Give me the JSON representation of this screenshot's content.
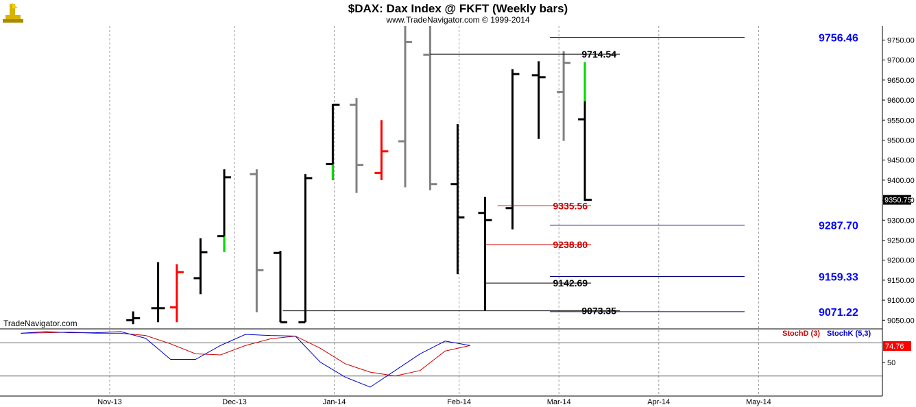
{
  "chart_data": {
    "type": "ohlc",
    "title": "$DAX:  Dax Index @ FKFT  (Weekly bars)",
    "subtitle": "www.TradeNavigator.com © 1999-2014",
    "brand": "TradeNavigator.com",
    "ylim": [
      9030,
      9785
    ],
    "y_ticks": [
      9050,
      9100,
      9150,
      9200,
      9250,
      9300,
      9350,
      9400,
      9450,
      9500,
      9550,
      9600,
      9650,
      9700,
      9750
    ],
    "y_tick_labels": [
      "9050.00",
      "9100.00",
      "9150.00",
      "9200.00",
      "9250.00",
      "9300.00",
      "9350.00",
      "9400.00",
      "9450.00",
      "9500.00",
      "9550.00",
      "9600.00",
      "9650.00",
      "9700.00",
      "9750.00"
    ],
    "last_price": 9350.75,
    "last_price_label": "9350.75",
    "x_labels": [
      "Nov-13",
      "Dec-13",
      "Jan-14",
      "Feb-14",
      "Mar-14",
      "Apr-14",
      "May-14"
    ],
    "x_label_weeks": [
      0,
      5,
      9,
      14,
      18,
      22,
      26
    ],
    "colors": {
      "black": "#000000",
      "gray": "#808080",
      "red": "#ff0000",
      "green": "#00dd00",
      "blue": "#0000ff",
      "navy": "#000080",
      "darkred": "#cc0000"
    },
    "bars": [
      {
        "w": 0.5,
        "high": 9072,
        "low": 9040,
        "open": 9050,
        "close": 9055,
        "color": "black"
      },
      {
        "w": 1.5,
        "high": 9195,
        "low": 9045,
        "open": 9080,
        "close": 9080,
        "color": "black"
      },
      {
        "w": 2.25,
        "high": 9190,
        "low": 9045,
        "open": 9082,
        "close": 9170,
        "color": "red"
      },
      {
        "w": 3.2,
        "high": 9255,
        "low": 9115,
        "open": 9155,
        "close": 9220,
        "color": "black"
      },
      {
        "w": 4.15,
        "high": 9427,
        "low": 9220,
        "open": 9260,
        "close": 9407,
        "color": "black",
        "accent": {
          "from": 9260,
          "to": 9220,
          "color": "green"
        }
      },
      {
        "w": 5.45,
        "high": 9427,
        "low": 9070,
        "open": 9415,
        "close": 9175,
        "color": "gray"
      },
      {
        "w": 6.4,
        "high": 9223,
        "low": 9045,
        "open": 9218,
        "close": 9045,
        "color": "black"
      },
      {
        "w": 7.4,
        "high": 9415,
        "low": 9045,
        "open": 9045,
        "close": 9405,
        "color": "black"
      },
      {
        "w": 8.5,
        "high": 9590,
        "low": 9400,
        "open": 9440,
        "close": 9588,
        "color": "black",
        "accent": {
          "from": 9440,
          "to": 9400,
          "color": "green"
        }
      },
      {
        "w": 9.45,
        "high": 9605,
        "low": 9368,
        "open": 9588,
        "close": 9438,
        "color": "gray"
      },
      {
        "w": 10.45,
        "high": 9550,
        "low": 9400,
        "open": 9418,
        "close": 9472,
        "color": "red"
      },
      {
        "w": 11.4,
        "high": 9795,
        "low": 9382,
        "open": 9497,
        "close": 9745,
        "color": "gray"
      },
      {
        "w": 12.4,
        "high": 9795,
        "low": 9375,
        "open": 9713,
        "close": 9390,
        "color": "gray"
      },
      {
        "w": 13.5,
        "high": 9540,
        "low": 9165,
        "open": 9390,
        "close": 9307,
        "color": "black"
      },
      {
        "w": 14.6,
        "high": 9358,
        "low": 9073,
        "open": 9318,
        "close": 9300,
        "color": "black"
      },
      {
        "w": 15.7,
        "high": 9677,
        "low": 9277,
        "open": 9330,
        "close": 9665,
        "color": "black"
      },
      {
        "w": 16.75,
        "high": 9697,
        "low": 9503,
        "open": 9662,
        "close": 9657,
        "color": "black"
      },
      {
        "w": 17.75,
        "high": 9722,
        "low": 9498,
        "open": 9620,
        "close": 9693,
        "color": "gray"
      },
      {
        "w": 18.6,
        "high": 9695,
        "low": 9348,
        "open": 9552,
        "close": 9350.75,
        "color": "black",
        "accent": {
          "from": 9695,
          "to": 9597,
          "color": "green"
        }
      }
    ],
    "levels": [
      {
        "value": 9756.46,
        "label": "9756.46",
        "color": "navy",
        "label_color": "blue",
        "w_from": 17.2,
        "w_to": 25.0,
        "big": true
      },
      {
        "value": 9714.54,
        "label": "9714.54",
        "color": "black",
        "label_color": "black",
        "w_from": 12.4,
        "w_to": 20.0,
        "big": false
      },
      {
        "value": 9335.56,
        "label": "9335.56",
        "color": "darkred",
        "label_color": "darkred",
        "w_from": 15.1,
        "w_to": 18.85,
        "big": false
      },
      {
        "value": 9287.7,
        "label": "9287.70",
        "color": "navy",
        "label_color": "blue",
        "w_from": 17.2,
        "w_to": 25.0,
        "big": true
      },
      {
        "value": 9238.8,
        "label": "9238.80",
        "color": "darkred",
        "label_color": "darkred",
        "w_from": 14.6,
        "w_to": 18.85,
        "big": false
      },
      {
        "value": 9159.33,
        "label": "9159.33",
        "color": "navy",
        "label_color": "blue",
        "w_from": 17.2,
        "w_to": 25.0,
        "big": true
      },
      {
        "value": 9142.69,
        "label": "9142.69",
        "color": "black",
        "label_color": "black",
        "w_from": 14.6,
        "w_to": 18.85,
        "big": false
      },
      {
        "value": 9073.35,
        "label": "9073.35",
        "color": "black",
        "label_color": "black",
        "w_from": 6.5,
        "w_to": 20.0,
        "big": false
      },
      {
        "value": 9071.22,
        "label": "9071.22",
        "color": "navy",
        "label_color": "blue",
        "w_from": 17.2,
        "w_to": 25.0,
        "big": true
      }
    ],
    "stochastic": {
      "legend_d": "StochD (3)",
      "legend_k": "StochK (5,3)",
      "value_label": "74.76",
      "ylim": [
        0,
        100
      ],
      "tick": 50,
      "tick_label": "50",
      "ref_high": 80,
      "ref_low": 20,
      "weeks": [
        0,
        1,
        2,
        3,
        4,
        5,
        6,
        7,
        8,
        9,
        10,
        11,
        12,
        13,
        14,
        15,
        16,
        17,
        18
      ],
      "k": [
        97,
        100,
        98,
        98,
        100,
        88,
        50,
        50,
        75,
        95,
        93,
        92,
        45,
        18,
        0,
        30,
        60,
        83,
        75
      ],
      "d": [
        97,
        98,
        99,
        97,
        97,
        93,
        78,
        60,
        58,
        75,
        87,
        92,
        70,
        42,
        27,
        20,
        30,
        65,
        75
      ]
    }
  }
}
